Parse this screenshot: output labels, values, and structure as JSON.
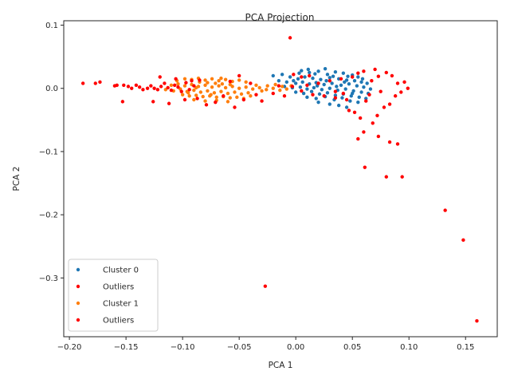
{
  "chart_data": {
    "type": "scatter",
    "title": "PCA Projection",
    "xlabel": "PCA 1",
    "ylabel": "PCA 2",
    "xlim": [
      -0.205,
      0.178
    ],
    "ylim": [
      -0.393,
      0.107
    ],
    "xticks": [
      -0.2,
      -0.15,
      -0.1,
      -0.05,
      0.0,
      0.05,
      0.1,
      0.15
    ],
    "xtick_labels": [
      "−0.20",
      "−0.15",
      "−0.10",
      "−0.05",
      "0.00",
      "0.05",
      "0.10",
      "0.15"
    ],
    "yticks": [
      0.1,
      0.0,
      -0.1,
      -0.2,
      -0.3
    ],
    "ytick_labels": [
      "0.1",
      "0.0",
      "−0.1",
      "−0.2",
      "−0.3"
    ],
    "grid": false,
    "legend_position": "lower-left",
    "series": [
      {
        "name": "Cluster 0",
        "color": "#1f77b4",
        "points": [
          [
            0.005,
            0.028
          ],
          [
            0.012,
            0.025
          ],
          [
            0.02,
            0.027
          ],
          [
            0.028,
            0.022
          ],
          [
            0.035,
            0.026
          ],
          [
            0.042,
            0.024
          ],
          [
            0.05,
            0.021
          ],
          [
            0.055,
            0.018
          ],
          [
            -0.02,
            0.02
          ],
          [
            -0.012,
            0.022
          ],
          [
            -0.005,
            0.018
          ],
          [
            0.002,
            0.015
          ],
          [
            0.008,
            0.018
          ],
          [
            0.015,
            0.016
          ],
          [
            0.022,
            0.014
          ],
          [
            0.03,
            0.017
          ],
          [
            0.038,
            0.015
          ],
          [
            0.045,
            0.013
          ],
          [
            0.052,
            0.012
          ],
          [
            0.058,
            0.01
          ],
          [
            0.063,
            0.008
          ],
          [
            -0.015,
            0.012
          ],
          [
            -0.008,
            0.01
          ],
          [
            0.0,
            0.008
          ],
          [
            0.006,
            0.01
          ],
          [
            0.012,
            0.007
          ],
          [
            0.018,
            0.009
          ],
          [
            0.025,
            0.006
          ],
          [
            0.032,
            0.008
          ],
          [
            0.04,
            0.005
          ],
          [
            0.047,
            0.007
          ],
          [
            0.054,
            0.004
          ],
          [
            0.06,
            0.002
          ],
          [
            0.066,
            -0.001
          ],
          [
            -0.01,
            0.003
          ],
          [
            -0.003,
            0.001
          ],
          [
            0.004,
            0.002
          ],
          [
            0.01,
            -0.001
          ],
          [
            0.016,
            0.001
          ],
          [
            0.023,
            -0.002
          ],
          [
            0.03,
            0.0
          ],
          [
            0.037,
            -0.003
          ],
          [
            0.044,
            -0.001
          ],
          [
            0.051,
            -0.004
          ],
          [
            0.058,
            -0.006
          ],
          [
            0.064,
            -0.008
          ],
          [
            0.0,
            -0.006
          ],
          [
            0.007,
            -0.008
          ],
          [
            0.014,
            -0.005
          ],
          [
            0.021,
            -0.009
          ],
          [
            0.028,
            -0.007
          ],
          [
            0.035,
            -0.011
          ],
          [
            0.042,
            -0.009
          ],
          [
            0.049,
            -0.012
          ],
          [
            0.056,
            -0.014
          ],
          [
            0.062,
            -0.016
          ],
          [
            0.01,
            -0.014
          ],
          [
            0.018,
            -0.016
          ],
          [
            0.026,
            -0.013
          ],
          [
            0.034,
            -0.018
          ],
          [
            0.041,
            -0.015
          ],
          [
            0.048,
            -0.02
          ],
          [
            0.055,
            -0.022
          ],
          [
            0.02,
            -0.022
          ],
          [
            0.03,
            -0.025
          ],
          [
            0.038,
            -0.027
          ],
          [
            0.045,
            -0.03
          ],
          [
            0.026,
            0.031
          ],
          [
            0.033,
            0.019
          ],
          [
            0.017,
            0.023
          ],
          [
            0.011,
            0.03
          ],
          [
            0.046,
            0.019
          ],
          [
            0.003,
            0.024
          ],
          [
            -0.002,
            0.012
          ],
          [
            0.059,
            0.015
          ],
          [
            0.036,
            0.003
          ],
          [
            0.027,
            0.012
          ],
          [
            0.019,
            0.004
          ],
          [
            0.043,
            0.01
          ],
          [
            0.05,
            -0.008
          ]
        ]
      },
      {
        "name": "Outliers",
        "color": "#ff0000",
        "points": [
          [
            -0.005,
            0.08
          ],
          [
            -0.027,
            -0.313
          ],
          [
            0.061,
            -0.125
          ],
          [
            0.08,
            -0.14
          ],
          [
            0.094,
            -0.14
          ],
          [
            0.132,
            -0.193
          ],
          [
            0.148,
            -0.24
          ],
          [
            0.16,
            -0.368
          ],
          [
            0.055,
            -0.08
          ],
          [
            0.06,
            -0.069
          ],
          [
            0.073,
            -0.076
          ],
          [
            0.083,
            -0.085
          ],
          [
            0.09,
            -0.088
          ],
          [
            0.057,
            -0.047
          ],
          [
            0.068,
            -0.055
          ],
          [
            0.072,
            -0.043
          ],
          [
            0.052,
            -0.038
          ],
          [
            0.047,
            -0.035
          ],
          [
            0.078,
            -0.03
          ],
          [
            0.083,
            -0.025
          ],
          [
            0.062,
            -0.02
          ],
          [
            0.088,
            -0.012
          ],
          [
            0.09,
            0.008
          ],
          [
            0.096,
            0.01
          ],
          [
            0.099,
            0.0
          ],
          [
            0.093,
            -0.006
          ],
          [
            0.085,
            0.02
          ],
          [
            0.08,
            0.025
          ],
          [
            0.07,
            0.03
          ],
          [
            0.06,
            0.027
          ],
          [
            0.055,
            0.024
          ],
          [
            0.05,
            0.018
          ],
          [
            0.04,
            0.015
          ],
          [
            0.03,
            0.012
          ],
          [
            0.02,
            0.008
          ],
          [
            0.01,
            0.005
          ],
          [
            0.005,
            -0.004
          ],
          [
            0.015,
            -0.01
          ],
          [
            0.025,
            -0.012
          ],
          [
            0.035,
            -0.015
          ],
          [
            0.045,
            -0.018
          ],
          [
            0.065,
            -0.01
          ],
          [
            0.075,
            -0.005
          ],
          [
            -0.002,
            0.022
          ],
          [
            0.005,
            0.018
          ],
          [
            0.012,
            0.02
          ],
          [
            0.035,
            -0.005
          ],
          [
            0.042,
            -0.008
          ],
          [
            0.067,
            0.012
          ],
          [
            0.073,
            0.019
          ]
        ]
      },
      {
        "name": "Cluster 1",
        "color": "#ff7f0e",
        "points": [
          [
            -0.105,
            0.012
          ],
          [
            -0.098,
            0.015
          ],
          [
            -0.092,
            0.014
          ],
          [
            -0.086,
            0.016
          ],
          [
            -0.08,
            0.013
          ],
          [
            -0.074,
            0.015
          ],
          [
            -0.068,
            0.012
          ],
          [
            -0.062,
            0.014
          ],
          [
            -0.056,
            0.011
          ],
          [
            -0.05,
            0.013
          ],
          [
            -0.044,
            0.01
          ],
          [
            -0.11,
            0.005
          ],
          [
            -0.104,
            0.007
          ],
          [
            -0.098,
            0.004
          ],
          [
            -0.092,
            0.006
          ],
          [
            -0.086,
            0.003
          ],
          [
            -0.08,
            0.005
          ],
          [
            -0.074,
            0.002
          ],
          [
            -0.068,
            0.004
          ],
          [
            -0.062,
            0.001
          ],
          [
            -0.056,
            0.003
          ],
          [
            -0.05,
            0.0
          ],
          [
            -0.044,
            0.002
          ],
          [
            -0.038,
            -0.001
          ],
          [
            -0.032,
            0.001
          ],
          [
            -0.026,
            -0.002
          ],
          [
            -0.02,
            0.0
          ],
          [
            -0.014,
            -0.003
          ],
          [
            -0.008,
            -0.001
          ],
          [
            -0.115,
            -0.002
          ],
          [
            -0.108,
            -0.004
          ],
          [
            -0.102,
            -0.001
          ],
          [
            -0.096,
            -0.005
          ],
          [
            -0.09,
            -0.003
          ],
          [
            -0.084,
            -0.006
          ],
          [
            -0.078,
            -0.004
          ],
          [
            -0.072,
            -0.007
          ],
          [
            -0.066,
            -0.005
          ],
          [
            -0.06,
            -0.008
          ],
          [
            -0.054,
            -0.006
          ],
          [
            -0.048,
            -0.009
          ],
          [
            -0.042,
            -0.007
          ],
          [
            -0.1,
            -0.01
          ],
          [
            -0.094,
            -0.012
          ],
          [
            -0.088,
            -0.011
          ],
          [
            -0.082,
            -0.013
          ],
          [
            -0.076,
            -0.012
          ],
          [
            -0.07,
            -0.014
          ],
          [
            -0.064,
            -0.013
          ],
          [
            -0.058,
            -0.015
          ],
          [
            -0.052,
            -0.014
          ],
          [
            -0.046,
            -0.016
          ],
          [
            -0.09,
            -0.018
          ],
          [
            -0.08,
            -0.02
          ],
          [
            -0.07,
            -0.019
          ],
          [
            -0.06,
            -0.021
          ],
          [
            -0.085,
            0.01
          ],
          [
            -0.078,
            0.009
          ],
          [
            -0.071,
            0.008
          ],
          [
            -0.065,
            0.007
          ],
          [
            -0.058,
            0.006
          ],
          [
            -0.095,
            -0.007
          ],
          [
            -0.088,
            0.001
          ],
          [
            -0.075,
            -0.01
          ],
          [
            -0.035,
            0.005
          ],
          [
            -0.03,
            -0.004
          ],
          [
            -0.025,
            0.004
          ],
          [
            -0.018,
            0.006
          ],
          [
            -0.012,
            0.003
          ],
          [
            -0.004,
            0.004
          ],
          [
            -0.04,
            -0.012
          ],
          [
            -0.066,
            0.016
          ]
        ]
      },
      {
        "name": "Outliers",
        "color": "#ff0000",
        "points": [
          [
            -0.188,
            0.008
          ],
          [
            -0.177,
            0.008
          ],
          [
            -0.173,
            0.01
          ],
          [
            -0.158,
            0.005
          ],
          [
            -0.152,
            0.005
          ],
          [
            -0.148,
            0.003
          ],
          [
            -0.145,
            0.0
          ],
          [
            -0.141,
            0.005
          ],
          [
            -0.138,
            0.002
          ],
          [
            -0.135,
            -0.002
          ],
          [
            -0.131,
            0.0
          ],
          [
            -0.128,
            0.004
          ],
          [
            -0.125,
            0.0
          ],
          [
            -0.122,
            -0.002
          ],
          [
            -0.119,
            0.003
          ],
          [
            -0.116,
            0.008
          ],
          [
            -0.113,
            0.001
          ],
          [
            -0.11,
            -0.003
          ],
          [
            -0.107,
            0.005
          ],
          [
            -0.104,
            0.002
          ],
          [
            -0.101,
            -0.005
          ],
          [
            -0.097,
            0.009
          ],
          [
            -0.094,
            -0.002
          ],
          [
            -0.09,
            0.004
          ],
          [
            -0.153,
            -0.021
          ],
          [
            -0.126,
            -0.021
          ],
          [
            -0.112,
            -0.024
          ],
          [
            -0.098,
            -0.018
          ],
          [
            -0.087,
            -0.016
          ],
          [
            -0.079,
            -0.026
          ],
          [
            -0.071,
            -0.022
          ],
          [
            -0.054,
            -0.03
          ],
          [
            -0.12,
            0.018
          ],
          [
            -0.106,
            0.015
          ],
          [
            -0.092,
            0.012
          ],
          [
            -0.085,
            0.013
          ],
          [
            -0.064,
            -0.012
          ],
          [
            -0.058,
            0.011
          ],
          [
            -0.05,
            0.02
          ],
          [
            -0.046,
            -0.018
          ],
          [
            -0.04,
            0.008
          ],
          [
            -0.035,
            -0.01
          ],
          [
            -0.03,
            -0.02
          ],
          [
            -0.02,
            -0.008
          ],
          [
            -0.015,
            0.004
          ],
          [
            -0.01,
            -0.012
          ],
          [
            -0.003,
            0.003
          ],
          [
            -0.16,
            0.004
          ]
        ]
      }
    ],
    "legend_entries": [
      "Cluster 0",
      "Outliers",
      "Cluster 1",
      "Outliers"
    ]
  }
}
